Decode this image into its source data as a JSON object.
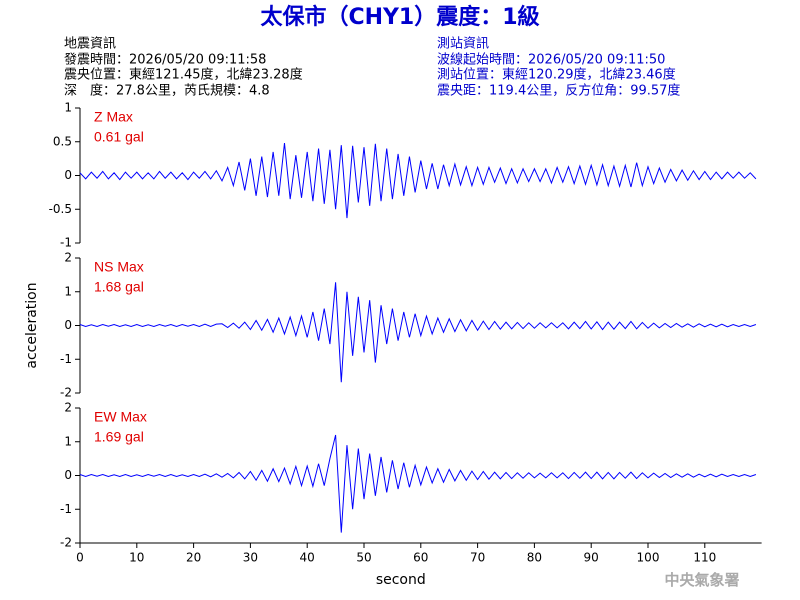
{
  "header": {
    "title": "太保市（CHY1）震度：1級",
    "left": [
      "地震資訊",
      "發震時間：2026/05/20 09:11:58",
      "震央位置：東經121.45度，北緯23.28度",
      "深　度：27.8公里，芮氏規模：4.8"
    ],
    "right": [
      "測站資訊",
      "波線起始時間：2026/05/20 09:11:50",
      "測站位置：東經120.29度，北緯23.46度",
      "震央距：119.4公里，反方位角：99.57度"
    ],
    "watermark": "中央氣象署"
  },
  "chart_data": [
    {
      "type": "line",
      "annotations": [
        "Z Max",
        "0.61 gal"
      ],
      "xlim": [
        0,
        120
      ],
      "ylim": [
        -1,
        1
      ],
      "yticks": [
        -1,
        -0.5,
        0,
        0.5,
        1
      ],
      "x": [
        0,
        1,
        2,
        3,
        4,
        5,
        6,
        7,
        8,
        9,
        10,
        11,
        12,
        13,
        14,
        15,
        16,
        17,
        18,
        19,
        20,
        21,
        22,
        23,
        24,
        25,
        26,
        27,
        28,
        29,
        30,
        31,
        32,
        33,
        34,
        35,
        36,
        37,
        38,
        39,
        40,
        41,
        42,
        43,
        44,
        45,
        46,
        47,
        48,
        49,
        50,
        51,
        52,
        53,
        54,
        55,
        56,
        57,
        58,
        59,
        60,
        61,
        62,
        63,
        64,
        65,
        66,
        67,
        68,
        69,
        70,
        71,
        72,
        73,
        74,
        75,
        76,
        77,
        78,
        79,
        80,
        81,
        82,
        83,
        84,
        85,
        86,
        87,
        88,
        89,
        90,
        91,
        92,
        93,
        94,
        95,
        96,
        97,
        98,
        99,
        100,
        101,
        102,
        103,
        104,
        105,
        106,
        107,
        108,
        109,
        110,
        111,
        112,
        113,
        114,
        115,
        116,
        117,
        118,
        119
      ],
      "series": [
        {
          "color": "#0000ff",
          "values": [
            0.04,
            -0.05,
            0.05,
            -0.04,
            0.06,
            -0.05,
            0.04,
            -0.06,
            0.05,
            -0.04,
            0.05,
            -0.05,
            0.04,
            -0.05,
            0.06,
            -0.04,
            0.05,
            -0.05,
            0.04,
            -0.06,
            0.05,
            -0.04,
            0.06,
            -0.05,
            0.07,
            -0.08,
            0.12,
            -0.15,
            0.2,
            -0.22,
            0.25,
            -0.3,
            0.28,
            -0.32,
            0.35,
            -0.3,
            0.48,
            -0.35,
            0.3,
            -0.33,
            0.35,
            -0.38,
            0.4,
            -0.42,
            0.38,
            -0.5,
            0.45,
            -0.63,
            0.44,
            -0.4,
            0.42,
            -0.45,
            0.47,
            -0.38,
            0.4,
            -0.35,
            0.32,
            -0.3,
            0.28,
            -0.25,
            0.22,
            -0.2,
            0.18,
            -0.2,
            0.16,
            -0.15,
            0.17,
            -0.14,
            0.13,
            -0.15,
            0.12,
            -0.13,
            0.12,
            -0.1,
            0.11,
            -0.12,
            0.1,
            -0.11,
            0.1,
            -0.09,
            0.1,
            -0.09,
            0.1,
            -0.11,
            0.12,
            -0.1,
            0.13,
            -0.12,
            0.14,
            -0.13,
            0.15,
            -0.14,
            0.16,
            -0.15,
            0.14,
            -0.16,
            0.15,
            -0.17,
            0.19,
            -0.15,
            0.13,
            -0.12,
            0.11,
            -0.1,
            0.09,
            -0.08,
            0.08,
            -0.07,
            0.07,
            -0.06,
            0.06,
            -0.06,
            0.05,
            -0.05,
            0.05,
            -0.04,
            0.05,
            -0.04,
            0.04,
            -0.05
          ]
        }
      ]
    },
    {
      "type": "line",
      "annotations": [
        "NS Max",
        "1.68 gal"
      ],
      "ylabel": "acceleration",
      "xlim": [
        0,
        120
      ],
      "ylim": [
        -2,
        2
      ],
      "yticks": [
        -2,
        -1,
        0,
        1,
        2
      ],
      "x": [
        0,
        1,
        2,
        3,
        4,
        5,
        6,
        7,
        8,
        9,
        10,
        11,
        12,
        13,
        14,
        15,
        16,
        17,
        18,
        19,
        20,
        21,
        22,
        23,
        24,
        25,
        26,
        27,
        28,
        29,
        30,
        31,
        32,
        33,
        34,
        35,
        36,
        37,
        38,
        39,
        40,
        41,
        42,
        43,
        44,
        45,
        46,
        47,
        48,
        49,
        50,
        51,
        52,
        53,
        54,
        55,
        56,
        57,
        58,
        59,
        60,
        61,
        62,
        63,
        64,
        65,
        66,
        67,
        68,
        69,
        70,
        71,
        72,
        73,
        74,
        75,
        76,
        77,
        78,
        79,
        80,
        81,
        82,
        83,
        84,
        85,
        86,
        87,
        88,
        89,
        90,
        91,
        92,
        93,
        94,
        95,
        96,
        97,
        98,
        99,
        100,
        101,
        102,
        103,
        104,
        105,
        106,
        107,
        108,
        109,
        110,
        111,
        112,
        113,
        114,
        115,
        116,
        117,
        118,
        119
      ],
      "series": [
        {
          "color": "#0000ff",
          "values": [
            0.03,
            -0.03,
            0.02,
            -0.03,
            0.03,
            -0.02,
            0.03,
            -0.03,
            0.02,
            -0.03,
            0.03,
            -0.03,
            0.02,
            -0.03,
            0.03,
            -0.02,
            0.03,
            -0.03,
            0.03,
            -0.02,
            0.03,
            -0.03,
            0.04,
            -0.03,
            0.04,
            0.05,
            -0.06,
            0.07,
            -0.08,
            0.1,
            -0.12,
            0.15,
            -0.14,
            0.18,
            -0.2,
            0.22,
            -0.25,
            0.25,
            -0.3,
            0.28,
            -0.35,
            0.4,
            -0.45,
            0.5,
            -0.55,
            1.28,
            -1.68,
            1.0,
            -0.9,
            0.85,
            -0.8,
            0.75,
            -1.1,
            0.6,
            -0.55,
            0.5,
            -0.45,
            0.4,
            -0.35,
            0.35,
            -0.3,
            0.28,
            -0.25,
            0.22,
            -0.2,
            0.2,
            -0.18,
            0.17,
            -0.16,
            0.15,
            -0.14,
            0.13,
            -0.12,
            0.12,
            -0.11,
            0.1,
            -0.1,
            0.09,
            -0.09,
            0.08,
            -0.08,
            0.08,
            -0.07,
            0.08,
            -0.07,
            0.08,
            -0.1,
            0.1,
            -0.09,
            0.12,
            -0.1,
            0.11,
            -0.12,
            0.1,
            -0.11,
            0.1,
            -0.09,
            0.12,
            -0.1,
            0.09,
            -0.08,
            0.07,
            -0.07,
            0.06,
            -0.06,
            0.06,
            -0.05,
            0.05,
            -0.05,
            0.05,
            -0.04,
            0.04,
            -0.04,
            0.04,
            -0.04,
            0.03,
            -0.03,
            0.03,
            -0.03,
            0.03
          ]
        }
      ]
    },
    {
      "type": "line",
      "annotations": [
        "EW Max",
        "1.69 gal"
      ],
      "xlabel": "second",
      "xlim": [
        0,
        120
      ],
      "ylim": [
        -2,
        2
      ],
      "yticks": [
        -2,
        -1,
        0,
        1,
        2
      ],
      "xticks": [
        0,
        10,
        20,
        30,
        40,
        50,
        60,
        70,
        80,
        90,
        100,
        110
      ],
      "x": [
        0,
        1,
        2,
        3,
        4,
        5,
        6,
        7,
        8,
        9,
        10,
        11,
        12,
        13,
        14,
        15,
        16,
        17,
        18,
        19,
        20,
        21,
        22,
        23,
        24,
        25,
        26,
        27,
        28,
        29,
        30,
        31,
        32,
        33,
        34,
        35,
        36,
        37,
        38,
        39,
        40,
        41,
        42,
        43,
        44,
        45,
        46,
        47,
        48,
        49,
        50,
        51,
        52,
        53,
        54,
        55,
        56,
        57,
        58,
        59,
        60,
        61,
        62,
        63,
        64,
        65,
        66,
        67,
        68,
        69,
        70,
        71,
        72,
        73,
        74,
        75,
        76,
        77,
        78,
        79,
        80,
        81,
        82,
        83,
        84,
        85,
        86,
        87,
        88,
        89,
        90,
        91,
        92,
        93,
        94,
        95,
        96,
        97,
        98,
        99,
        100,
        101,
        102,
        103,
        104,
        105,
        106,
        107,
        108,
        109,
        110,
        111,
        112,
        113,
        114,
        115,
        116,
        117,
        118,
        119
      ],
      "series": [
        {
          "color": "#0000ff",
          "values": [
            0.03,
            -0.03,
            0.03,
            -0.02,
            0.03,
            -0.03,
            0.02,
            -0.03,
            0.03,
            -0.03,
            0.02,
            -0.03,
            0.03,
            -0.02,
            0.03,
            -0.03,
            0.03,
            -0.03,
            0.02,
            -0.03,
            0.03,
            -0.03,
            0.04,
            -0.04,
            0.05,
            -0.05,
            0.06,
            -0.07,
            0.09,
            -0.1,
            0.12,
            -0.14,
            0.15,
            -0.17,
            0.2,
            -0.18,
            0.22,
            -0.25,
            0.27,
            -0.3,
            0.28,
            -0.32,
            0.35,
            -0.3,
            0.5,
            1.2,
            -1.69,
            0.9,
            -1.0,
            0.8,
            -0.7,
            0.65,
            -0.6,
            0.55,
            -0.5,
            0.45,
            -0.4,
            0.38,
            -0.35,
            0.3,
            -0.28,
            0.25,
            -0.22,
            0.2,
            -0.2,
            0.18,
            -0.16,
            0.15,
            -0.14,
            0.13,
            -0.12,
            0.12,
            -0.11,
            0.1,
            -0.1,
            0.09,
            -0.09,
            0.08,
            -0.08,
            0.08,
            -0.07,
            0.07,
            -0.07,
            0.08,
            -0.07,
            0.08,
            -0.09,
            0.09,
            -0.08,
            0.1,
            -0.09,
            0.1,
            -0.1,
            0.09,
            -0.1,
            0.09,
            -0.08,
            0.1,
            -0.09,
            0.08,
            -0.07,
            0.07,
            -0.06,
            0.06,
            -0.06,
            0.05,
            -0.05,
            0.05,
            -0.05,
            0.04,
            -0.04,
            0.04,
            -0.04,
            0.04,
            -0.03,
            0.03,
            -0.03,
            0.03,
            -0.03,
            0.03
          ]
        }
      ]
    }
  ]
}
